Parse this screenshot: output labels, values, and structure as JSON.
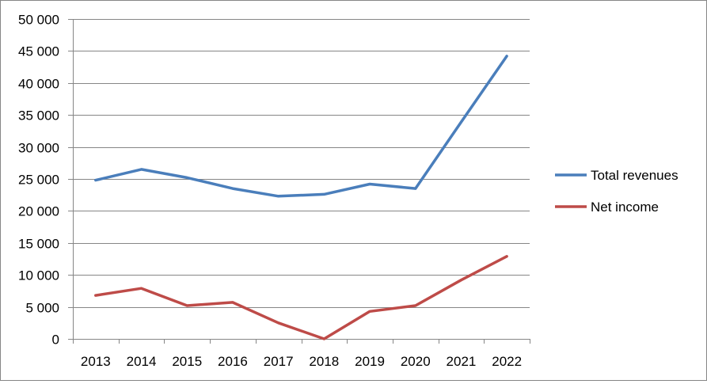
{
  "chart_data": {
    "type": "line",
    "title": "",
    "xlabel": "",
    "ylabel": "",
    "categories": [
      "2013",
      "2014",
      "2015",
      "2016",
      "2017",
      "2018",
      "2019",
      "2020",
      "2021",
      "2022"
    ],
    "series": [
      {
        "name": "Total revenues",
        "color": "#4a7ebb",
        "values": [
          24800,
          26500,
          25200,
          23500,
          22300,
          22600,
          24200,
          23500,
          33900,
          44200
        ]
      },
      {
        "name": "Net income",
        "color": "#be4b48",
        "values": [
          6800,
          7900,
          5200,
          5700,
          2500,
          0,
          4300,
          5200,
          9200,
          12900
        ]
      }
    ],
    "ylim": [
      0,
      50000
    ],
    "yticks": [
      0,
      5000,
      10000,
      15000,
      20000,
      25000,
      30000,
      35000,
      40000,
      45000,
      50000
    ],
    "ytick_labels": [
      "0",
      "5 000",
      "10 000",
      "15 000",
      "20 000",
      "25 000",
      "30 000",
      "35 000",
      "40 000",
      "45 000",
      "50 000"
    ],
    "grid": true,
    "legend_position": "right"
  }
}
